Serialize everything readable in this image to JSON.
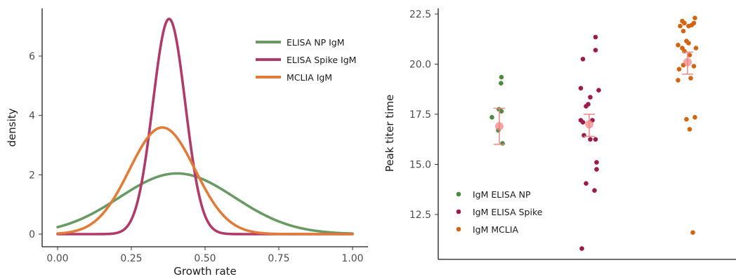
{
  "chart_data": [
    {
      "type": "line",
      "title": "",
      "xlabel": "Growth rate",
      "ylabel": "density",
      "xlim": [
        0,
        1
      ],
      "ylim": [
        0,
        7.2
      ],
      "x_ticks": [
        "0.00",
        "0.25",
        "0.50",
        "0.75",
        "1.00"
      ],
      "y_ticks": [
        "0",
        "2",
        "4",
        "6"
      ],
      "legend_position": "top-right",
      "series": [
        {
          "name": "ELISA NP IgM",
          "color": "#6a9a64",
          "distribution": "normal",
          "mean": 0.405,
          "sd": 0.195
        },
        {
          "name": "ELISA Spike IgM",
          "color": "#b03a69",
          "distribution": "normal",
          "mean": 0.378,
          "sd": 0.055
        },
        {
          "name": "MCLIA IgM",
          "color": "#e07b39",
          "distribution": "normal",
          "mean": 0.355,
          "sd": 0.111
        }
      ]
    },
    {
      "type": "scatter",
      "title": "",
      "xlabel": "",
      "ylabel": "Peak titer time",
      "ylim": [
        10.5,
        22.8
      ],
      "y_ticks": [
        "12.5",
        "15.0",
        "17.5",
        "20.0",
        "22.5"
      ],
      "legend_position": "bottom-left",
      "summary_color": "#f08080",
      "series": [
        {
          "name": "IgM ELISA NP",
          "color": "#4e8a3e",
          "summary": {
            "mean": 16.9,
            "lower": 16.0,
            "upper": 17.8
          },
          "points": [
            {
              "jitter": 0.1,
              "y": 19.35
            },
            {
              "jitter": 0.08,
              "y": 19.05
            },
            {
              "jitter": -0.02,
              "y": 17.75
            },
            {
              "jitter": 0.1,
              "y": 17.65
            },
            {
              "jitter": -0.35,
              "y": 17.35
            },
            {
              "jitter": -0.05,
              "y": 16.7
            },
            {
              "jitter": 0.15,
              "y": 16.05
            }
          ]
        },
        {
          "name": "IgM ELISA Spike",
          "color": "#9c1b4a",
          "summary": {
            "mean": 17.0,
            "lower": 16.4,
            "upper": 17.5
          },
          "points": [
            {
              "jitter": 0.3,
              "y": 21.35
            },
            {
              "jitter": 0.3,
              "y": 20.7
            },
            {
              "jitter": -0.3,
              "y": 20.25
            },
            {
              "jitter": -0.4,
              "y": 18.8
            },
            {
              "jitter": 0.45,
              "y": 18.7
            },
            {
              "jitter": 0.05,
              "y": 18.35
            },
            {
              "jitter": -0.05,
              "y": 18.0
            },
            {
              "jitter": -0.15,
              "y": 17.9
            },
            {
              "jitter": -0.4,
              "y": 17.2
            },
            {
              "jitter": -0.3,
              "y": 17.1
            },
            {
              "jitter": 0.15,
              "y": 17.2
            },
            {
              "jitter": -0.25,
              "y": 16.45
            },
            {
              "jitter": 0.05,
              "y": 16.25
            },
            {
              "jitter": 0.3,
              "y": 16.25
            },
            {
              "jitter": 0.35,
              "y": 15.1
            },
            {
              "jitter": 0.35,
              "y": 14.75
            },
            {
              "jitter": -0.15,
              "y": 14.05
            },
            {
              "jitter": 0.25,
              "y": 13.7
            },
            {
              "jitter": -0.35,
              "y": 10.8
            }
          ]
        },
        {
          "name": "IgM MCLIA",
          "color": "#d26512",
          "summary": {
            "mean": 20.1,
            "lower": 19.5,
            "upper": 20.6
          },
          "points": [
            {
              "jitter": 0.35,
              "y": 22.3
            },
            {
              "jitter": -0.25,
              "y": 22.15
            },
            {
              "jitter": -0.15,
              "y": 22.05
            },
            {
              "jitter": 0.3,
              "y": 22.05
            },
            {
              "jitter": 0.05,
              "y": 21.9
            },
            {
              "jitter": 0.2,
              "y": 21.95
            },
            {
              "jitter": -0.35,
              "y": 21.9
            },
            {
              "jitter": -0.2,
              "y": 21.65
            },
            {
              "jitter": -0.05,
              "y": 21.15
            },
            {
              "jitter": 0.05,
              "y": 21.05
            },
            {
              "jitter": -0.45,
              "y": 20.95
            },
            {
              "jitter": -0.25,
              "y": 20.8
            },
            {
              "jitter": 0.4,
              "y": 20.8
            },
            {
              "jitter": -0.15,
              "y": 20.65
            },
            {
              "jitter": 0.1,
              "y": 20.45
            },
            {
              "jitter": 0.3,
              "y": 19.9
            },
            {
              "jitter": -0.2,
              "y": 19.95
            },
            {
              "jitter": -0.4,
              "y": 19.75
            },
            {
              "jitter": 0.15,
              "y": 19.3
            },
            {
              "jitter": -0.45,
              "y": 19.2
            },
            {
              "jitter": 0.35,
              "y": 17.35
            },
            {
              "jitter": -0.05,
              "y": 17.25
            },
            {
              "jitter": 0.1,
              "y": 16.75
            },
            {
              "jitter": 0.25,
              "y": 11.6
            }
          ]
        }
      ]
    }
  ]
}
